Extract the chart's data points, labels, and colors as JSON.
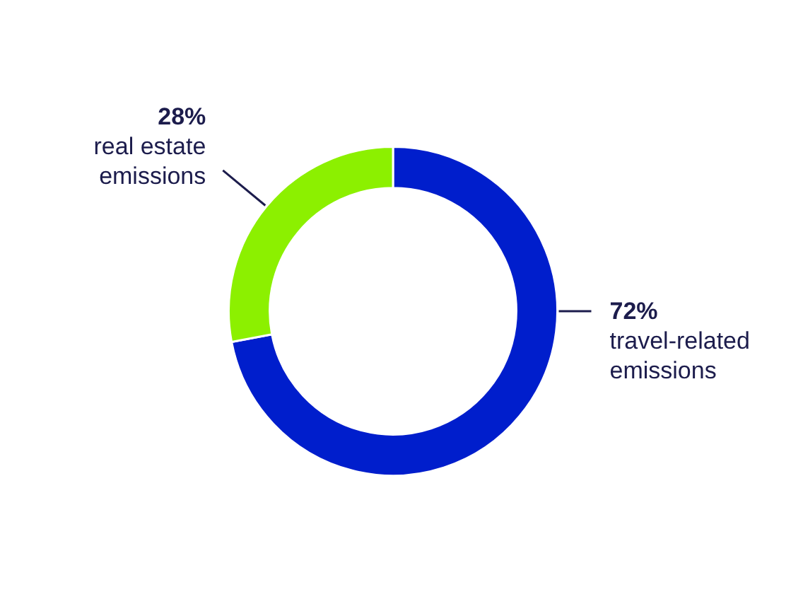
{
  "chart_data": {
    "type": "donut",
    "categories": [
      "travel-related emissions",
      "real estate emissions"
    ],
    "values": [
      72,
      28
    ],
    "colors": [
      "#001ecc",
      "#8cf000"
    ],
    "value_labels": [
      "72%",
      "28%"
    ]
  }
}
